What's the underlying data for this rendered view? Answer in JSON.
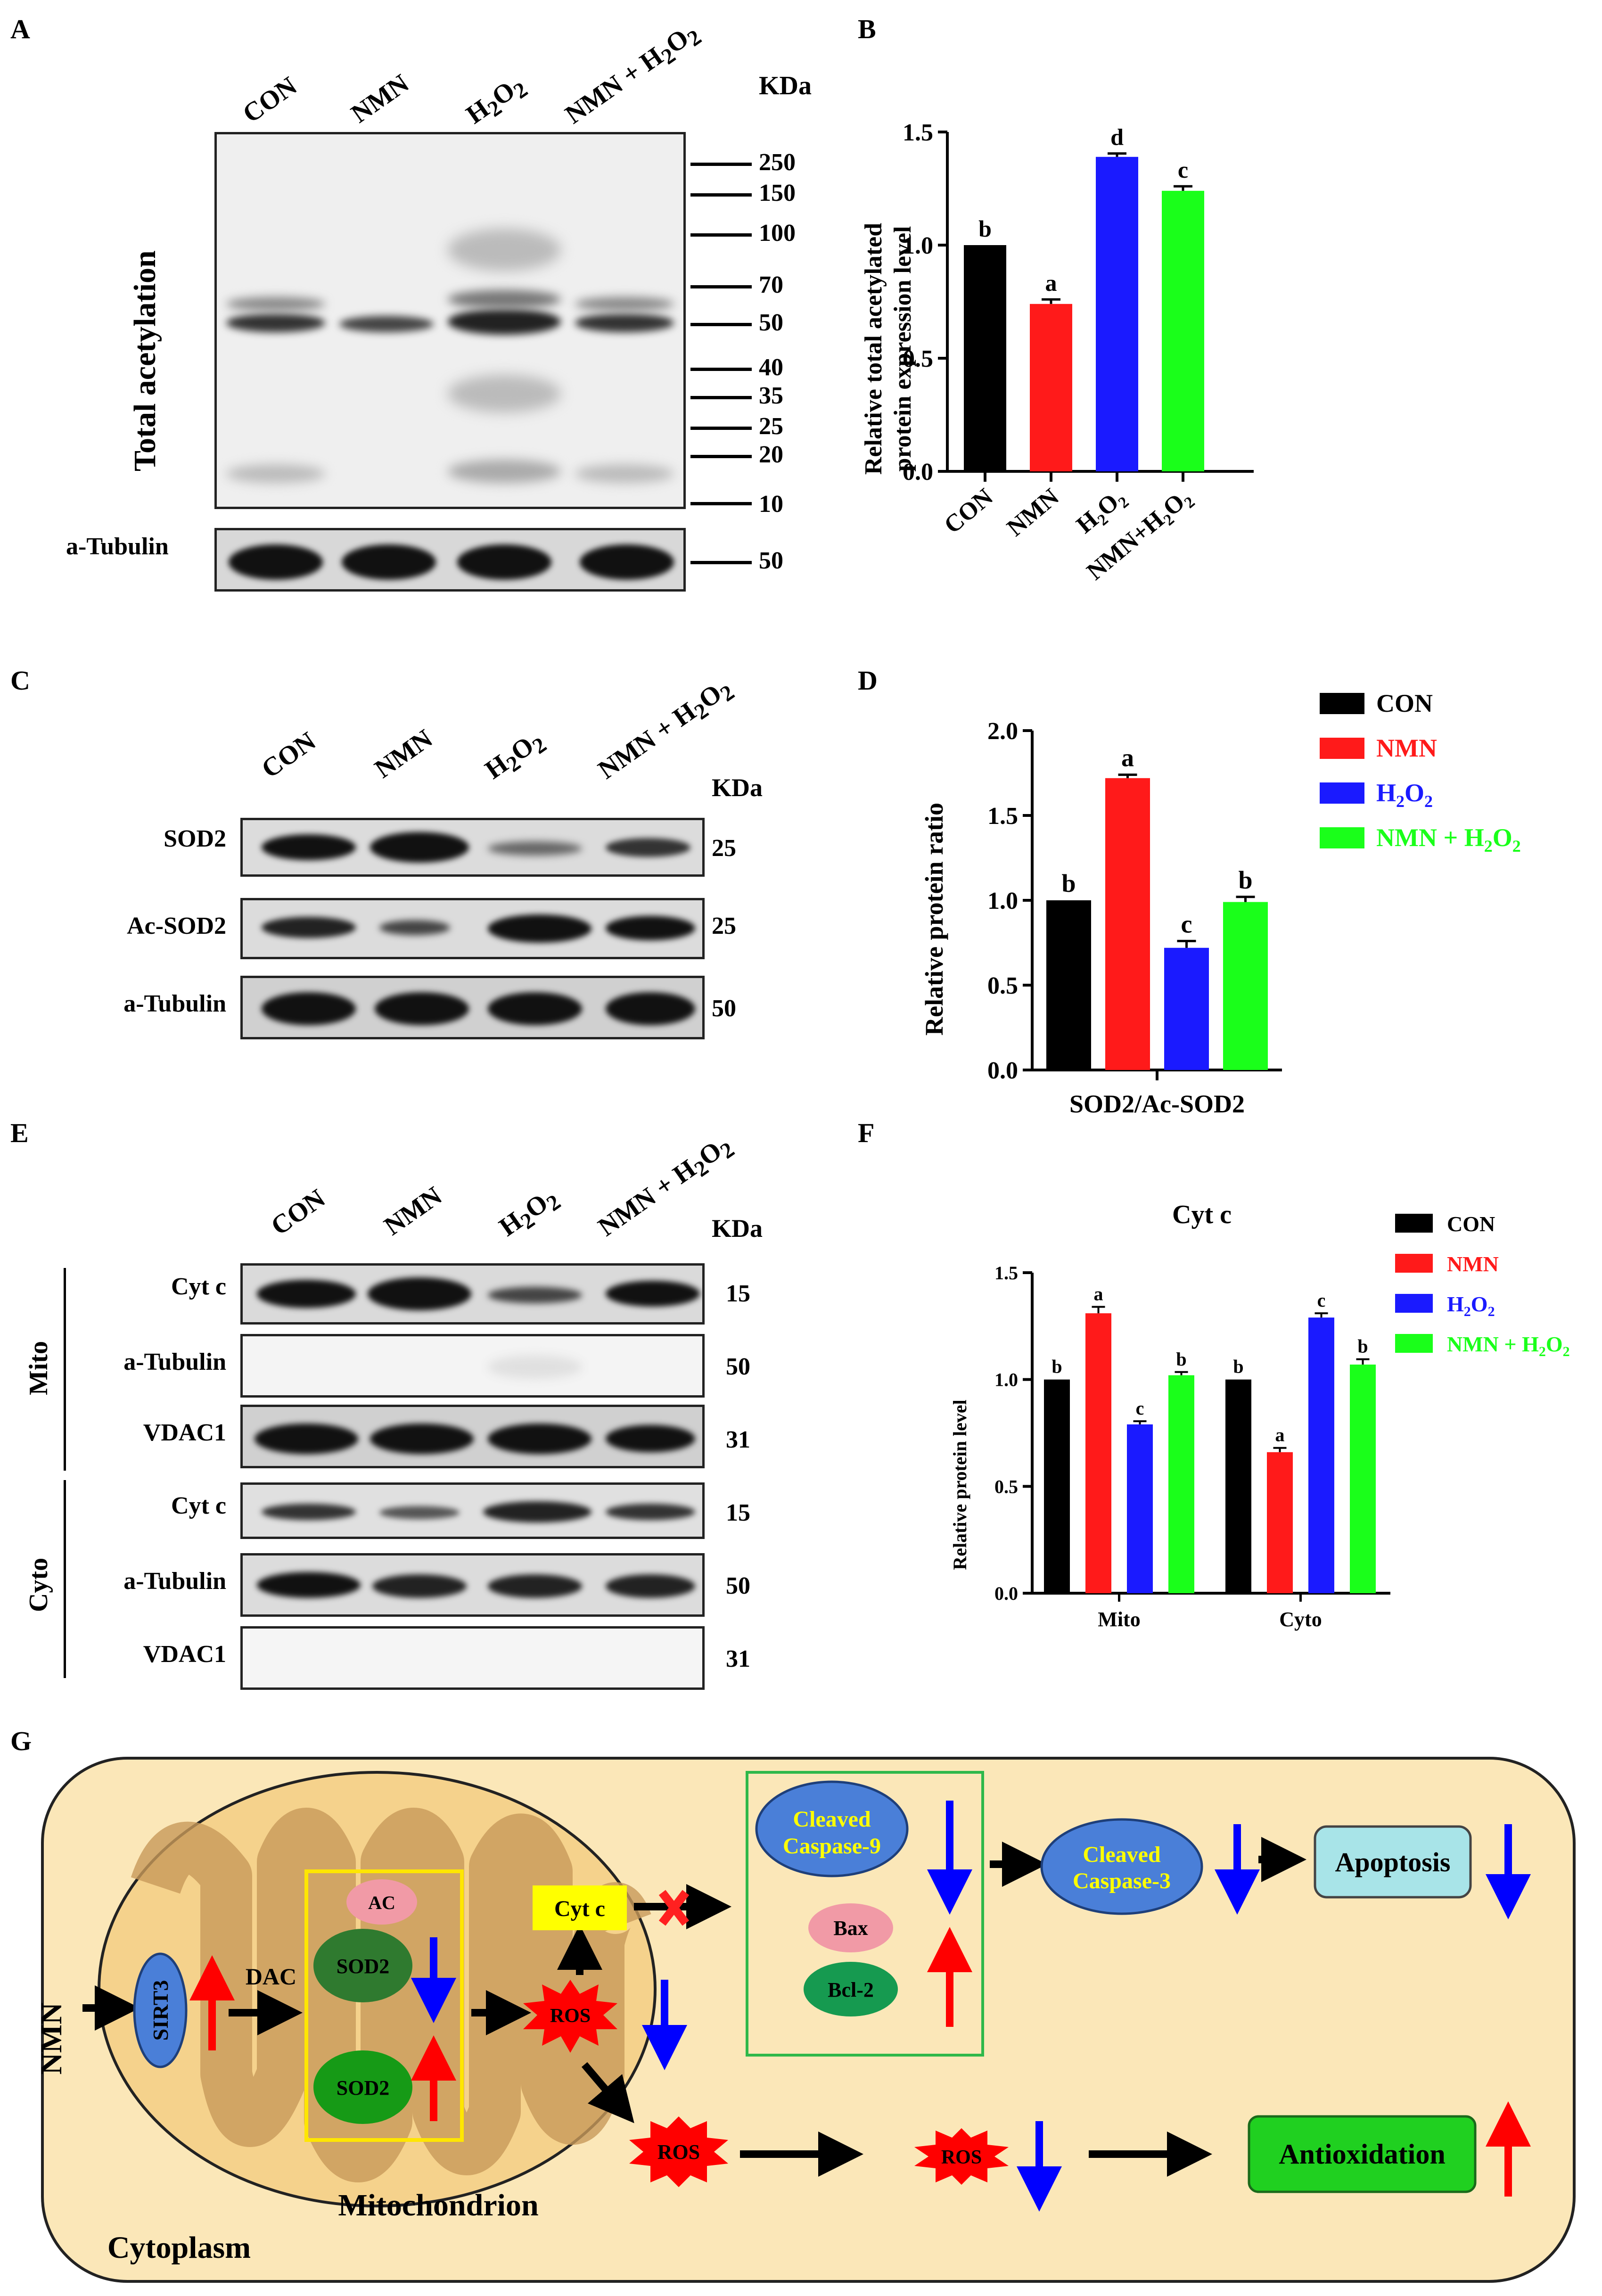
{
  "panel_labels": {
    "A": "A",
    "B": "B",
    "C": "C",
    "D": "D",
    "E": "E",
    "F": "F",
    "G": "G"
  },
  "lanes": [
    "CON",
    "NMN",
    "H2O2",
    "NMN + H2O2"
  ],
  "kda": "KDa",
  "panelA": {
    "ylabel": "Total acetylation",
    "loading_label": "a-Tubulin",
    "markers": [
      "250",
      "150",
      "100",
      "70",
      "50",
      "40",
      "35",
      "25",
      "20",
      "10"
    ],
    "loading_marker": "50"
  },
  "panelC": {
    "rows": [
      {
        "label": "SOD2",
        "mw": "25"
      },
      {
        "label": "Ac-SOD2",
        "mw": "25"
      },
      {
        "label": "a-Tubulin",
        "mw": "50"
      }
    ]
  },
  "panelE": {
    "groups": [
      {
        "name": "Mito",
        "rows": [
          {
            "label": "Cyt c",
            "mw": "15"
          },
          {
            "label": "a-Tubulin",
            "mw": "50"
          },
          {
            "label": "VDAC1",
            "mw": "31"
          }
        ]
      },
      {
        "name": "Cyto",
        "rows": [
          {
            "label": "Cyt c",
            "mw": "15"
          },
          {
            "label": "a-Tubulin",
            "mw": "50"
          },
          {
            "label": "VDAC1",
            "mw": "31"
          }
        ]
      }
    ]
  },
  "colors": {
    "CON": "#000000",
    "NMN": "#ff1a1a",
    "H2O2": "#1a1aff",
    "NMN_H2O2": "#1aff1a"
  },
  "chart_data": [
    {
      "panel": "B",
      "type": "bar",
      "categories": [
        "CON",
        "NMN",
        "H2O2",
        "NMN+H2O2"
      ],
      "values": [
        1.0,
        0.74,
        1.39,
        1.24
      ],
      "errors": [
        0.0,
        0.02,
        0.015,
        0.02
      ],
      "letters": [
        "b",
        "a",
        "d",
        "c"
      ],
      "ylabel": "Relative total acetylated protein expression level",
      "ylim": [
        0,
        1.5
      ],
      "yticks": [
        "0.0",
        "0.5",
        "1.0",
        "1.5"
      ]
    },
    {
      "panel": "D",
      "type": "bar",
      "categories": [
        "CON",
        "NMN",
        "H2O2",
        "NMN + H2O2"
      ],
      "values": [
        1.0,
        1.72,
        0.72,
        0.99
      ],
      "errors": [
        0.0,
        0.02,
        0.04,
        0.03
      ],
      "letters": [
        "b",
        "a",
        "c",
        "b"
      ],
      "xlabel": "SOD2/Ac-SOD2",
      "ylabel": "Relative protein ratio",
      "ylim": [
        0,
        2.0
      ],
      "yticks": [
        "0.0",
        "0.5",
        "1.0",
        "1.5",
        "2.0"
      ],
      "legend": "right"
    },
    {
      "panel": "F",
      "type": "bar",
      "title": "Cyt c",
      "categories": [
        "Mito",
        "Cyto"
      ],
      "series": [
        {
          "name": "CON",
          "values": [
            1.0,
            1.0
          ],
          "errors": [
            0,
            0
          ],
          "letters": [
            "b",
            "b"
          ]
        },
        {
          "name": "NMN",
          "values": [
            1.31,
            0.66
          ],
          "errors": [
            0.03,
            0.02
          ],
          "letters": [
            "a",
            "a"
          ]
        },
        {
          "name": "H2O2",
          "values": [
            0.79,
            1.29
          ],
          "errors": [
            0.015,
            0.02
          ],
          "letters": [
            "c",
            "c"
          ]
        },
        {
          "name": "NMN + H2O2",
          "values": [
            1.02,
            1.07
          ],
          "errors": [
            0.015,
            0.025
          ],
          "letters": [
            "b",
            "b"
          ]
        }
      ],
      "ylabel": "Relative protein level",
      "ylim": [
        0,
        1.5
      ],
      "yticks": [
        "0.0",
        "0.5",
        "1.0",
        "1.5"
      ],
      "legend": "right"
    }
  ],
  "diagram": {
    "nmn": "NMN",
    "sirt3": "SIRT3",
    "dac": "DAC",
    "ac": "AC",
    "sod2": "SOD2",
    "cytc": "Cyt c",
    "ros": "ROS",
    "casp9": "Cleaved Caspase-9",
    "bax": "Bax",
    "bcl2": "Bcl-2",
    "casp3": "Cleaved Caspase-3",
    "apoptosis": "Apoptosis",
    "antiox": "Antioxidation",
    "mito": "Mitochondrion",
    "cyto": "Cytoplasm"
  }
}
